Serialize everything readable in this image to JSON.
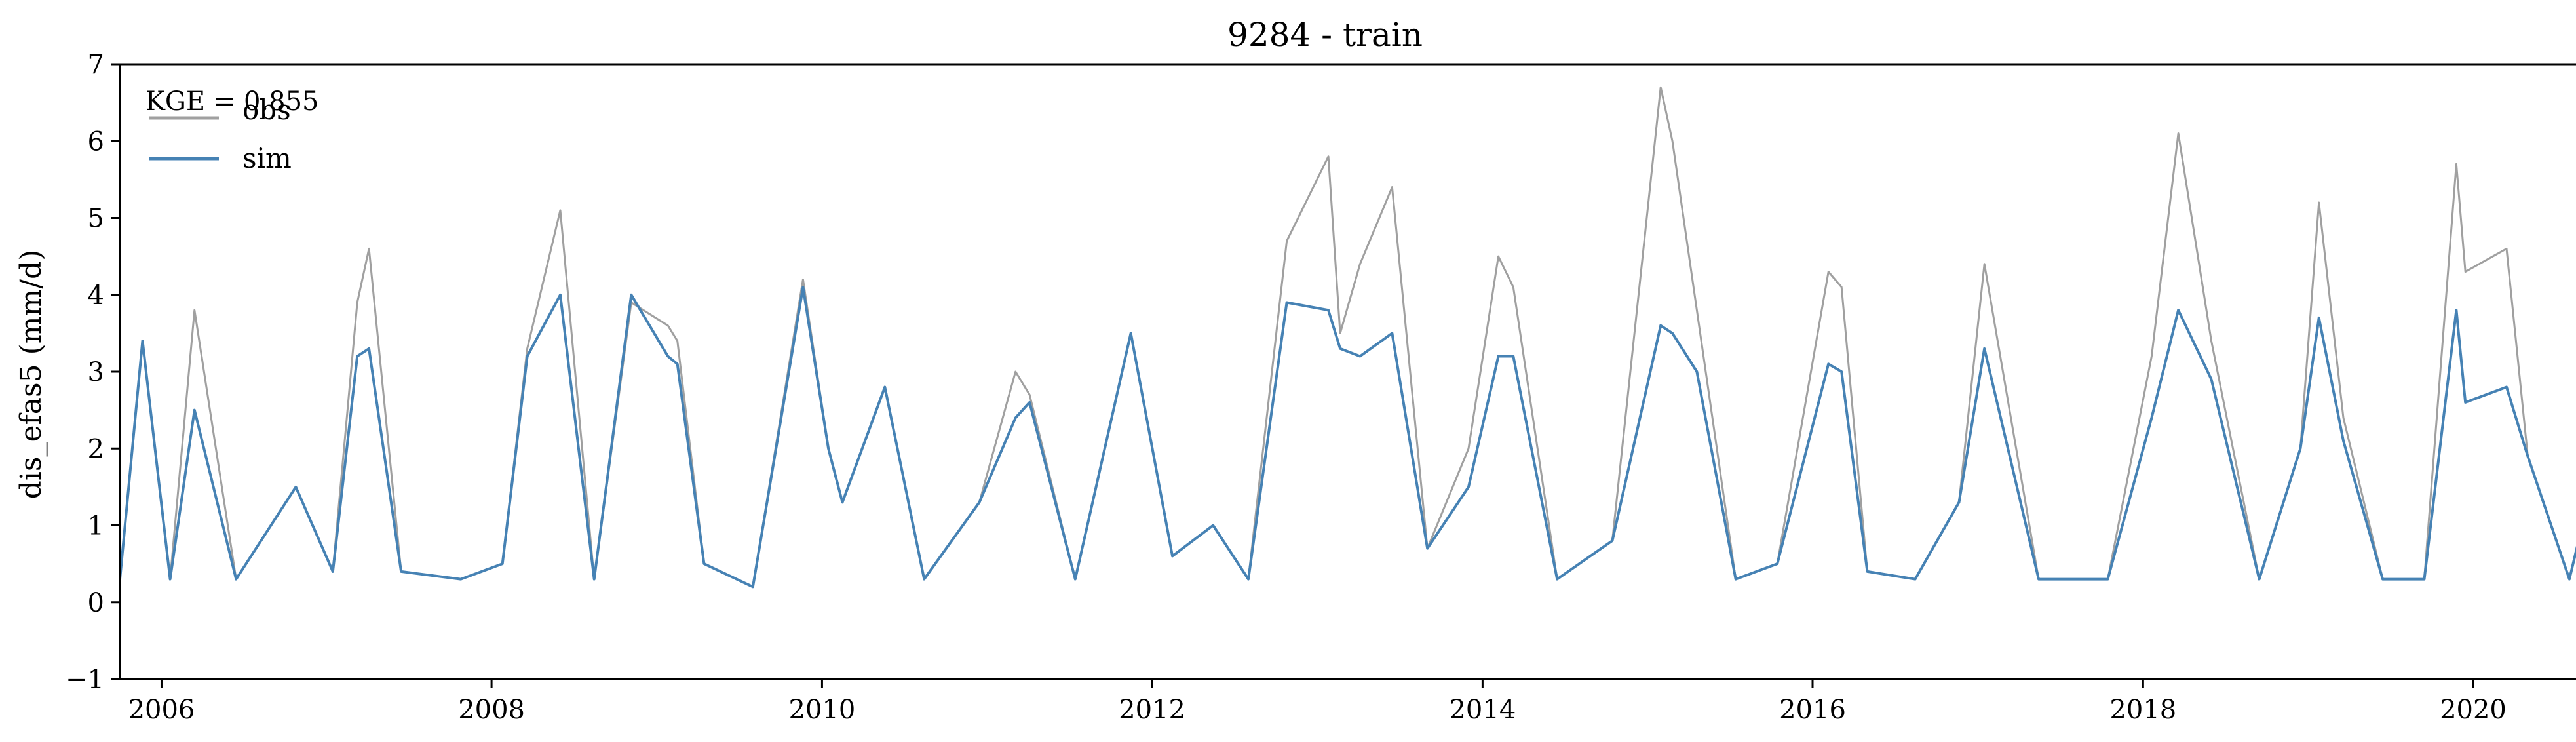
{
  "chart_data": {
    "type": "line",
    "title": "9284 - train",
    "xlabel": "",
    "ylabel": "dis_efas5 (mm/d)",
    "ylim": [
      -1,
      7
    ],
    "xlim": [
      "2005-10-01",
      "2020-10-01"
    ],
    "x_ticks": [
      "2006",
      "2008",
      "2010",
      "2012",
      "2014",
      "2016",
      "2018",
      "2020"
    ],
    "y_ticks": [
      "−1",
      "0",
      "1",
      "2",
      "3",
      "4",
      "5",
      "6",
      "7"
    ],
    "grid": false,
    "legend_position": "top-left",
    "annotation": "KGE = 0.855",
    "series": [
      {
        "name": "obs",
        "color": "#a0a0a0",
        "x": [
          "2005-10-01",
          "2005-11-20",
          "2006-01-20",
          "2006-03-15",
          "2006-06-15",
          "2006-10-25",
          "2007-01-15",
          "2007-03-10",
          "2007-04-05",
          "2007-06-15",
          "2007-10-25",
          "2008-01-25",
          "2008-03-20",
          "2008-06-01",
          "2008-08-15",
          "2008-11-05",
          "2009-01-25",
          "2009-02-15",
          "2009-04-15",
          "2009-08-01",
          "2009-11-20",
          "2010-01-15",
          "2010-02-15",
          "2010-05-20",
          "2010-08-15",
          "2010-12-15",
          "2011-03-05",
          "2011-04-05",
          "2011-07-15",
          "2011-11-15",
          "2012-02-15",
          "2012-05-15",
          "2012-08-01",
          "2012-10-25",
          "2013-01-25",
          "2013-02-20",
          "2013-04-05",
          "2013-06-15",
          "2013-09-01",
          "2013-12-01",
          "2014-02-05",
          "2014-03-10",
          "2014-06-15",
          "2014-10-15",
          "2015-01-30",
          "2015-02-25",
          "2015-04-20",
          "2015-07-15",
          "2015-10-15",
          "2016-02-05",
          "2016-03-05",
          "2016-05-01",
          "2016-08-15",
          "2016-11-20",
          "2017-01-15",
          "2017-05-15",
          "2017-10-15",
          "2018-01-20",
          "2018-03-20",
          "2018-06-01",
          "2018-09-15",
          "2018-12-15",
          "2019-01-25",
          "2019-03-20",
          "2019-06-15",
          "2019-09-15",
          "2019-11-25",
          "2019-12-15",
          "2020-03-15",
          "2020-05-01",
          "2020-08-01",
          "2020-10-01"
        ],
        "values": [
          0.3,
          3.4,
          0.3,
          3.8,
          0.3,
          1.5,
          0.4,
          3.9,
          4.6,
          0.4,
          0.3,
          0.5,
          3.3,
          5.1,
          0.3,
          3.9,
          3.6,
          3.4,
          0.5,
          0.2,
          4.2,
          2.0,
          1.3,
          2.8,
          0.3,
          1.3,
          3.0,
          2.7,
          0.3,
          3.5,
          0.6,
          1.0,
          0.3,
          4.7,
          5.8,
          3.5,
          4.4,
          5.4,
          0.7,
          2.0,
          4.5,
          4.1,
          0.3,
          0.8,
          6.7,
          6.0,
          3.8,
          0.3,
          0.5,
          4.3,
          4.1,
          0.4,
          0.3,
          1.3,
          4.4,
          0.3,
          0.3,
          3.2,
          6.1,
          3.4,
          0.3,
          2.0,
          5.2,
          2.4,
          0.3,
          0.3,
          5.7,
          4.3,
          4.6,
          1.9,
          0.3,
          1.8
        ]
      },
      {
        "name": "sim",
        "color": "#4682b4",
        "x": [
          "2005-10-01",
          "2005-11-20",
          "2006-01-20",
          "2006-03-15",
          "2006-06-15",
          "2006-10-25",
          "2007-01-15",
          "2007-03-10",
          "2007-04-05",
          "2007-06-15",
          "2007-10-25",
          "2008-01-25",
          "2008-03-20",
          "2008-06-01",
          "2008-08-15",
          "2008-11-05",
          "2009-01-25",
          "2009-02-15",
          "2009-04-15",
          "2009-08-01",
          "2009-11-20",
          "2010-01-15",
          "2010-02-15",
          "2010-05-20",
          "2010-08-15",
          "2010-12-15",
          "2011-03-05",
          "2011-04-05",
          "2011-07-15",
          "2011-11-15",
          "2012-02-15",
          "2012-05-15",
          "2012-08-01",
          "2012-10-25",
          "2013-01-25",
          "2013-02-20",
          "2013-04-05",
          "2013-06-15",
          "2013-09-01",
          "2013-12-01",
          "2014-02-05",
          "2014-03-10",
          "2014-06-15",
          "2014-10-15",
          "2015-01-30",
          "2015-02-25",
          "2015-04-20",
          "2015-07-15",
          "2015-10-15",
          "2016-02-05",
          "2016-03-05",
          "2016-05-01",
          "2016-08-15",
          "2016-11-20",
          "2017-01-15",
          "2017-05-15",
          "2017-10-15",
          "2018-01-20",
          "2018-03-20",
          "2018-06-01",
          "2018-09-15",
          "2018-12-15",
          "2019-01-25",
          "2019-03-20",
          "2019-06-15",
          "2019-09-15",
          "2019-11-25",
          "2019-12-15",
          "2020-03-15",
          "2020-05-01",
          "2020-08-01",
          "2020-10-01"
        ],
        "values": [
          0.3,
          3.4,
          0.3,
          2.5,
          0.3,
          1.5,
          0.4,
          3.2,
          3.3,
          0.4,
          0.3,
          0.5,
          3.2,
          4.0,
          0.3,
          4.0,
          3.2,
          3.1,
          0.5,
          0.2,
          4.1,
          2.0,
          1.3,
          2.8,
          0.3,
          1.3,
          2.4,
          2.6,
          0.3,
          3.5,
          0.6,
          1.0,
          0.3,
          3.9,
          3.8,
          3.3,
          3.2,
          3.5,
          0.7,
          1.5,
          3.2,
          3.2,
          0.3,
          0.8,
          3.6,
          3.5,
          3.0,
          0.3,
          0.5,
          3.1,
          3.0,
          0.4,
          0.3,
          1.3,
          3.3,
          0.3,
          0.3,
          2.4,
          3.8,
          2.9,
          0.3,
          2.0,
          3.7,
          2.1,
          0.3,
          0.3,
          3.8,
          2.6,
          2.8,
          1.9,
          0.3,
          1.8
        ]
      }
    ]
  }
}
